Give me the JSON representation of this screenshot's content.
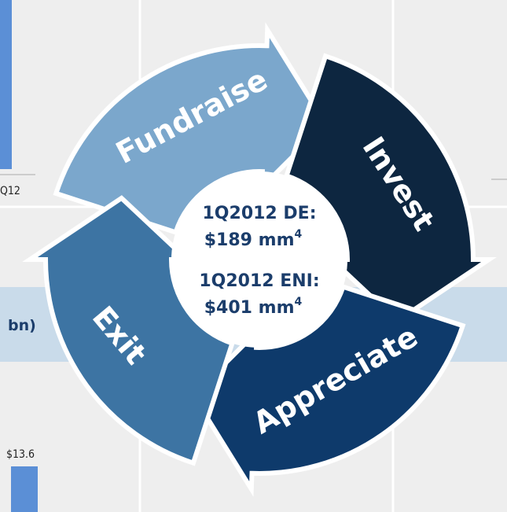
{
  "background": {
    "axis_label": "Q12",
    "row_label": "bn)",
    "bar_label": "$13.6"
  },
  "cycle": {
    "steps": [
      "Fundraise",
      "Invest",
      "Appreciate",
      "Exit"
    ],
    "center": [
      {
        "label": "1Q2012 DE:",
        "value": "$189 mm",
        "note": "4"
      },
      {
        "label": "1Q2012 ENI:",
        "value": "$401 mm",
        "note": "4"
      }
    ]
  }
}
